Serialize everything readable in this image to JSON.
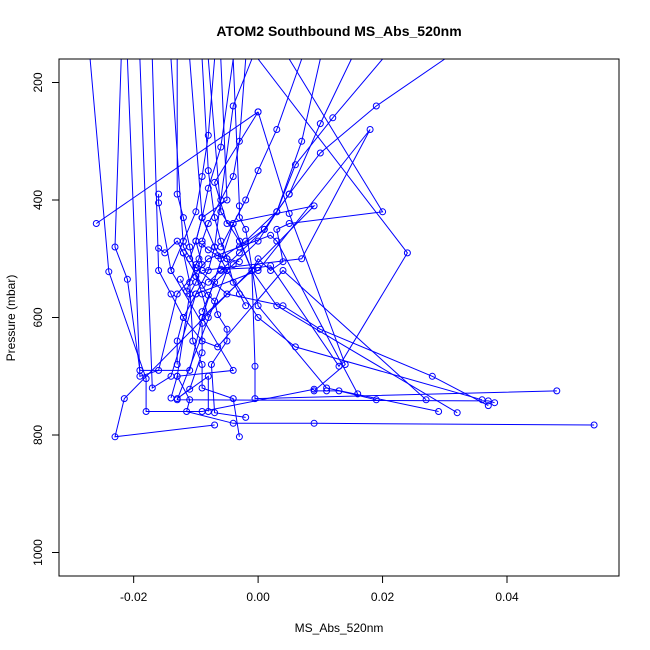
{
  "chart_data": {
    "type": "line",
    "title": "ATOM2 Southbound MS_Abs_520nm",
    "xlabel": "MS_Abs_520nm",
    "ylabel": "Pressure (mbar)",
    "xlim": [
      -0.032,
      0.058
    ],
    "ylim": [
      1040,
      160
    ],
    "y_reversed": true,
    "x_ticks": [
      -0.02,
      0.0,
      0.02,
      0.04
    ],
    "x_tick_labels": [
      "-0.02",
      "0.00",
      "0.02",
      "0.04"
    ],
    "y_ticks": [
      200,
      400,
      600,
      800,
      1000
    ],
    "y_tick_labels": [
      "200",
      "400",
      "600",
      "800",
      "1000"
    ],
    "grid": false,
    "marker": "open-circle",
    "series_color": "#0000ff",
    "series": [
      {
        "x": [
          -0.022,
          -0.023,
          -0.021,
          -0.019,
          -0.011,
          -0.009,
          -0.004,
          -0.001,
          -0.009,
          -0.004,
          -0.013,
          -0.011,
          -0.0115,
          -0.004,
          0.009,
          0.054
        ],
        "y": [
          160,
          480,
          535,
          690,
          690,
          600,
          440,
          520,
          600,
          690,
          700,
          740,
          760,
          780,
          780,
          783
        ]
      },
      {
        "x": [
          -0.027,
          -0.024,
          -0.018,
          -0.018,
          -0.009,
          0.009
        ],
        "y": [
          160,
          522,
          704,
          760,
          760,
          722
        ]
      },
      {
        "x": [
          -0.026,
          0.0,
          -0.007,
          -0.005,
          0.009,
          -0.0215,
          -0.023,
          -0.007
        ],
        "y": [
          440,
          250,
          370,
          440,
          410,
          738,
          803,
          783
        ]
      },
      {
        "x": [
          -0.016,
          -0.016,
          -0.014,
          -0.009,
          -0.009,
          -0.011,
          -0.013,
          -0.008,
          -0.008
        ],
        "y": [
          390,
          405,
          520,
          610,
          660,
          722,
          738,
          700,
          760
        ]
      },
      {
        "x": [
          -0.016,
          -0.015,
          -0.013,
          -0.012,
          -0.011,
          -0.0105,
          -0.009,
          -0.009,
          -0.004,
          -0.003
        ],
        "y": [
          482,
          490,
          470,
          490,
          540,
          640,
          680,
          720,
          738,
          803
        ]
      },
      {
        "x": [
          -0.012,
          -0.009,
          -0.008,
          -0.007,
          -0.0065,
          -0.005,
          -0.005,
          -0.0075,
          -0.007,
          -0.002
        ],
        "y": [
          490,
          545,
          562,
          572,
          595,
          620,
          640,
          680,
          762,
          770
        ]
      },
      {
        "x": [
          -0.0125,
          -0.0115,
          -0.01,
          -0.0095,
          -0.009,
          -0.008,
          -0.0065,
          -0.005,
          -0.003
        ],
        "y": [
          535,
          555,
          510,
          500,
          475,
          485,
          495,
          500,
          505
        ]
      },
      {
        "x": [
          0.0,
          0.005,
          0.014,
          0.009,
          0.011,
          0.013,
          0.019
        ],
        "y": [
          250,
          423,
          680,
          725,
          725,
          725,
          740
        ]
      },
      {
        "x": [
          0.0,
          0.024,
          0.013,
          0.002,
          0.0,
          -0.006,
          -0.005,
          -0.013,
          0.037,
          0.038
        ],
        "y": [
          160,
          490,
          683,
          512,
          515,
          518,
          520,
          740,
          742,
          745
        ]
      },
      {
        "x": [
          0.005,
          0.02,
          0.005,
          0.003,
          0.004,
          0.002,
          0.0,
          -0.001,
          -0.0005,
          -0.0005,
          0.048
        ],
        "y": [
          160,
          420,
          440,
          450,
          505,
          520,
          500,
          520,
          683,
          738,
          725
        ]
      },
      {
        "x": [
          -0.006,
          -0.005,
          -0.009,
          -0.01,
          -0.009,
          -0.01,
          -0.011,
          -0.013,
          -0.014
        ],
        "y": [
          160,
          400,
          430,
          470,
          510,
          540,
          560,
          700,
          737
        ]
      },
      {
        "x": [
          -0.004,
          -0.003,
          -0.003,
          -0.002,
          0.0,
          0.011,
          0.029
        ],
        "y": [
          160,
          410,
          430,
          450,
          580,
          720,
          760
        ]
      },
      {
        "x": [
          -0.008,
          -0.006,
          -0.003,
          -0.001,
          0.003,
          0.032
        ],
        "y": [
          160,
          420,
          470,
          520,
          580,
          762
        ]
      },
      {
        "x": [
          -0.011,
          -0.009,
          -0.007,
          -0.005,
          0.0,
          0.006,
          0.036
        ],
        "y": [
          160,
          430,
          480,
          520,
          600,
          650,
          740
        ]
      },
      {
        "x": [
          -0.014,
          -0.012,
          -0.01,
          -0.005,
          0.004,
          0.01,
          0.028,
          0.037
        ],
        "y": [
          160,
          480,
          515,
          560,
          580,
          620,
          700,
          750
        ]
      },
      {
        "x": [
          -0.017,
          -0.016,
          -0.014,
          -0.012,
          -0.009,
          -0.0065,
          0.004,
          0.027
        ],
        "y": [
          160,
          520,
          560,
          600,
          640,
          650,
          520,
          740
        ]
      },
      {
        "x": [
          -0.021,
          -0.019,
          -0.016,
          -0.013,
          -0.008,
          0.002,
          0.003,
          0.016
        ],
        "y": [
          160,
          700,
          690,
          560,
          500,
          460,
          470,
          730
        ]
      },
      {
        "x": [
          -0.019,
          -0.017,
          -0.014,
          -0.01,
          0.0,
          0.018,
          0.007,
          -0.009
        ],
        "y": [
          160,
          720,
          700,
          560,
          520,
          280,
          500,
          520
        ]
      },
      {
        "x": [
          -0.001,
          -0.004,
          -0.007,
          -0.008,
          -0.01,
          -0.012,
          -0.013,
          -0.013
        ],
        "y": [
          160,
          240,
          480,
          520,
          560,
          600,
          640,
          680
        ]
      },
      {
        "x": [
          0.01,
          0.007,
          0.003,
          0.0,
          -0.004,
          -0.007,
          -0.009
        ],
        "y": [
          160,
          300,
          420,
          470,
          510,
          540,
          590
        ]
      },
      {
        "x": [
          -0.009,
          -0.008,
          -0.007,
          -0.006,
          -0.005,
          -0.004,
          -0.003,
          -0.002
        ],
        "y": [
          160,
          350,
          430,
          470,
          500,
          540,
          560,
          580
        ]
      },
      {
        "x": [
          -0.013,
          -0.013,
          -0.012,
          -0.011,
          -0.01,
          -0.009,
          -0.008
        ],
        "y": [
          160,
          390,
          430,
          480,
          530,
          560,
          600
        ]
      },
      {
        "x": [
          0.015,
          0.01,
          0.005,
          0.001,
          -0.003,
          -0.006,
          -0.008
        ],
        "y": [
          160,
          270,
          390,
          450,
          490,
          520,
          540
        ]
      },
      {
        "x": [
          0.02,
          0.012,
          0.006,
          0.003,
          -0.002,
          -0.006
        ],
        "y": [
          160,
          260,
          340,
          420,
          470,
          500
        ]
      },
      {
        "x": [
          0.03,
          0.019,
          0.01,
          0.005,
          0.001,
          -0.003
        ],
        "y": [
          160,
          240,
          320,
          390,
          450,
          480
        ]
      },
      {
        "x": [
          -0.004,
          -0.006,
          -0.008,
          -0.009,
          -0.01,
          -0.011
        ],
        "y": [
          160,
          310,
          380,
          430,
          470,
          500
        ]
      },
      {
        "x": [
          -0.007,
          -0.008,
          -0.009,
          -0.01,
          -0.012,
          -0.014
        ],
        "y": [
          160,
          290,
          360,
          420,
          470,
          520
        ]
      },
      {
        "x": [
          -0.002,
          -0.003,
          -0.004,
          -0.006,
          -0.008,
          -0.009
        ],
        "y": [
          160,
          300,
          360,
          400,
          440,
          470
        ]
      },
      {
        "x": [
          0.007,
          0.003,
          0.0,
          -0.002,
          -0.004,
          -0.006
        ],
        "y": [
          160,
          280,
          350,
          400,
          440,
          480
        ]
      }
    ]
  }
}
